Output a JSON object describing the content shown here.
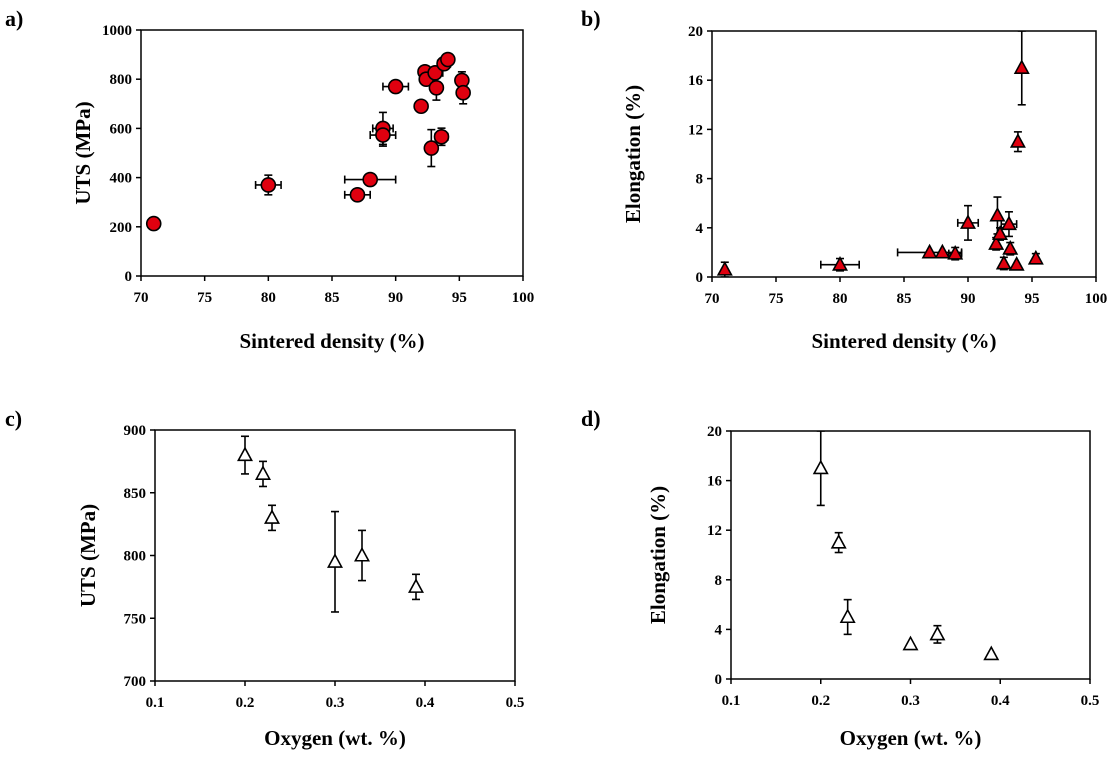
{
  "chart_data": [
    {
      "panel": "a)",
      "type": "scatter",
      "xlabel": "Sintered  density (%)",
      "ylabel": "UTS (MPa)",
      "xlim": [
        70,
        100
      ],
      "ylim": [
        0,
        1000
      ],
      "xticks": [
        70,
        75,
        80,
        85,
        90,
        95,
        100
      ],
      "yticks": [
        0,
        200,
        400,
        600,
        800,
        1000
      ],
      "marker": "circle",
      "marker_fill": "#e0000f",
      "series": [
        {
          "points": [
            {
              "x": 71,
              "y": 213,
              "xerr": 0,
              "yerr": 0
            },
            {
              "x": 80,
              "y": 370,
              "xerr": 1,
              "yerr": 40
            },
            {
              "x": 87,
              "y": 330,
              "xerr": 1,
              "yerr": 15
            },
            {
              "x": 88,
              "y": 392,
              "xerr": 2,
              "yerr": 10
            },
            {
              "x": 89,
              "y": 600,
              "xerr": 0.8,
              "yerr": 65
            },
            {
              "x": 89,
              "y": 573,
              "xerr": 1,
              "yerr": 45
            },
            {
              "x": 90,
              "y": 770,
              "xerr": 1,
              "yerr": 0
            },
            {
              "x": 92,
              "y": 690,
              "xerr": 0,
              "yerr": 0
            },
            {
              "x": 92.3,
              "y": 830,
              "xerr": 0,
              "yerr": 15
            },
            {
              "x": 92.4,
              "y": 800,
              "xerr": 0,
              "yerr": 20
            },
            {
              "x": 92.8,
              "y": 520,
              "xerr": 0,
              "yerr": 75
            },
            {
              "x": 93.1,
              "y": 826,
              "xerr": 0.6,
              "yerr": 10
            },
            {
              "x": 93.2,
              "y": 765,
              "xerr": 0,
              "yerr": 50
            },
            {
              "x": 93.6,
              "y": 566,
              "xerr": 0.5,
              "yerr": 35
            },
            {
              "x": 93.8,
              "y": 863,
              "xerr": 0.5,
              "yerr": 10
            },
            {
              "x": 94.1,
              "y": 880,
              "xerr": 0,
              "yerr": 10
            },
            {
              "x": 95.2,
              "y": 795,
              "xerr": 0,
              "yerr": 35
            },
            {
              "x": 95.3,
              "y": 745,
              "xerr": 0,
              "yerr": 45
            }
          ]
        }
      ]
    },
    {
      "panel": "b)",
      "type": "scatter",
      "xlabel": "Sintered  density (%)",
      "ylabel": "Elongation  (%)",
      "xlim": [
        70,
        100
      ],
      "ylim": [
        0,
        20
      ],
      "xticks": [
        70,
        75,
        80,
        85,
        90,
        95,
        100
      ],
      "yticks": [
        0,
        4,
        8,
        12,
        16,
        20
      ],
      "marker": "triangle",
      "marker_fill": "#e0000f",
      "series": [
        {
          "points": [
            {
              "x": 71,
              "y": 0.6,
              "xerr": 0,
              "yerr": 0.6
            },
            {
              "x": 80,
              "y": 1.0,
              "xerr": 1.5,
              "yerr": 0.5
            },
            {
              "x": 87,
              "y": 2.0,
              "xerr": 2.5,
              "yerr": 0
            },
            {
              "x": 88,
              "y": 2.0,
              "xerr": 0,
              "yerr": 0
            },
            {
              "x": 89,
              "y": 1.9,
              "xerr": 0.5,
              "yerr": 0.5
            },
            {
              "x": 90,
              "y": 4.4,
              "xerr": 0.8,
              "yerr": 1.4
            },
            {
              "x": 92.2,
              "y": 2.7,
              "xerr": 0,
              "yerr": 0.5
            },
            {
              "x": 92.3,
              "y": 5.0,
              "xerr": 0,
              "yerr": 1.5
            },
            {
              "x": 92.5,
              "y": 3.5,
              "xerr": 0,
              "yerr": 0.5
            },
            {
              "x": 92.8,
              "y": 1.1,
              "xerr": 0,
              "yerr": 0.5
            },
            {
              "x": 93.2,
              "y": 4.3,
              "xerr": 0.6,
              "yerr": 1.0
            },
            {
              "x": 93.3,
              "y": 2.3,
              "xerr": 0,
              "yerr": 0.5
            },
            {
              "x": 93.8,
              "y": 1.0,
              "xerr": 0,
              "yerr": 0
            },
            {
              "x": 93.9,
              "y": 11.0,
              "xerr": 0,
              "yerr": 0.8
            },
            {
              "x": 94.2,
              "y": 17.0,
              "xerr": 0,
              "yerr": 3.0
            },
            {
              "x": 95.3,
              "y": 1.5,
              "xerr": 0,
              "yerr": 0.4
            }
          ]
        }
      ]
    },
    {
      "panel": "c)",
      "type": "scatter",
      "xlabel": "Oxygen (wt. %)",
      "ylabel": "UTS (MPa)",
      "xlim": [
        0.1,
        0.5
      ],
      "ylim": [
        700,
        900
      ],
      "xticks": [
        0.1,
        0.2,
        0.3,
        0.4,
        0.5
      ],
      "yticks": [
        700,
        750,
        800,
        850,
        900
      ],
      "marker": "triangle-open",
      "marker_fill": "none",
      "series": [
        {
          "points": [
            {
              "x": 0.2,
              "y": 880,
              "xerr": 0,
              "yerr": 15
            },
            {
              "x": 0.22,
              "y": 865,
              "xerr": 0,
              "yerr": 10
            },
            {
              "x": 0.23,
              "y": 830,
              "xerr": 0,
              "yerr": 10
            },
            {
              "x": 0.3,
              "y": 795,
              "xerr": 0,
              "yerr": 40
            },
            {
              "x": 0.33,
              "y": 800,
              "xerr": 0,
              "yerr": 20
            },
            {
              "x": 0.39,
              "y": 775,
              "xerr": 0,
              "yerr": 10
            }
          ]
        }
      ]
    },
    {
      "panel": "d)",
      "type": "scatter",
      "xlabel": "Oxygen (wt. %)",
      "ylabel": "Elongation  (%)",
      "xlim": [
        0.1,
        0.5
      ],
      "ylim": [
        0,
        20
      ],
      "xticks": [
        0.1,
        0.2,
        0.3,
        0.4,
        0.5
      ],
      "yticks": [
        0,
        4,
        8,
        12,
        16,
        20
      ],
      "marker": "triangle-open",
      "marker_fill": "none",
      "series": [
        {
          "points": [
            {
              "x": 0.2,
              "y": 17.0,
              "xerr": 0,
              "yerr": 3.0
            },
            {
              "x": 0.22,
              "y": 11.0,
              "xerr": 0,
              "yerr": 0.8
            },
            {
              "x": 0.23,
              "y": 5.0,
              "xerr": 0,
              "yerr": 1.4
            },
            {
              "x": 0.3,
              "y": 2.8,
              "xerr": 0,
              "yerr": 0
            },
            {
              "x": 0.33,
              "y": 3.6,
              "xerr": 0,
              "yerr": 0.7
            },
            {
              "x": 0.39,
              "y": 2.0,
              "xerr": 0,
              "yerr": 0
            }
          ]
        }
      ]
    }
  ]
}
